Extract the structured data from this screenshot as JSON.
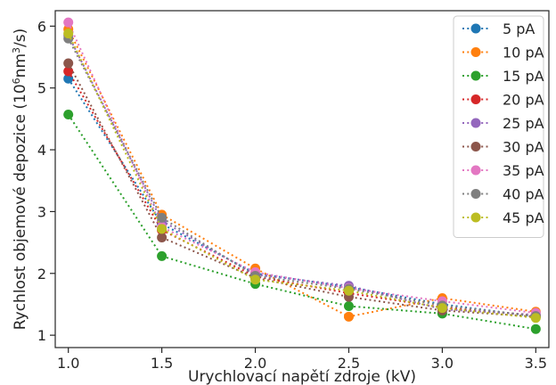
{
  "chart_data": {
    "type": "scatter",
    "xlabel": "Urychlovací napětí zdroje (kV)",
    "ylabel_main": "Rychlost objemové depozice (10",
    "ylabel_sup1": "6",
    "ylabel_mid": "nm",
    "ylabel_sup2": "3",
    "ylabel_end": "/s)",
    "x": [
      1.0,
      1.5,
      2.0,
      2.5,
      3.0,
      3.5
    ],
    "xticks": [
      "1.0",
      "1.5",
      "2.0",
      "2.5",
      "3.0",
      "3.5"
    ],
    "yticks": [
      "1",
      "2",
      "3",
      "4",
      "5",
      "6"
    ],
    "xlim": [
      0.93,
      3.57
    ],
    "ylim": [
      0.8,
      6.25
    ],
    "grid": false,
    "legend_position": "top-right",
    "line_style": "dotted",
    "series": [
      {
        "name": "5 pA",
        "color": "#1f77b4",
        "values": [
          5.15,
          2.8,
          2.0,
          1.78,
          1.5,
          1.3
        ]
      },
      {
        "name": "10 pA",
        "color": "#ff7f0e",
        "values": [
          5.95,
          2.95,
          2.08,
          1.3,
          1.6,
          1.38
        ]
      },
      {
        "name": "15 pA",
        "color": "#2ca02c",
        "values": [
          4.57,
          2.28,
          1.83,
          1.47,
          1.35,
          1.1
        ]
      },
      {
        "name": "20 pA",
        "color": "#d62728",
        "values": [
          5.27,
          2.7,
          1.95,
          1.68,
          1.45,
          1.32
        ]
      },
      {
        "name": "25 pA",
        "color": "#9467bd",
        "values": [
          5.85,
          2.85,
          1.98,
          1.8,
          1.42,
          1.33
        ]
      },
      {
        "name": "30 pA",
        "color": "#8c564b",
        "values": [
          5.4,
          2.58,
          1.93,
          1.62,
          1.4,
          1.3
        ]
      },
      {
        "name": "35 pA",
        "color": "#e377c2",
        "values": [
          6.06,
          2.75,
          2.02,
          1.76,
          1.55,
          1.36
        ]
      },
      {
        "name": "40 pA",
        "color": "#7f7f7f",
        "values": [
          5.8,
          2.9,
          1.96,
          1.75,
          1.48,
          1.31
        ]
      },
      {
        "name": "45 pA",
        "color": "#bcbd22",
        "values": [
          5.88,
          2.72,
          1.9,
          1.72,
          1.44,
          1.28
        ]
      }
    ]
  }
}
